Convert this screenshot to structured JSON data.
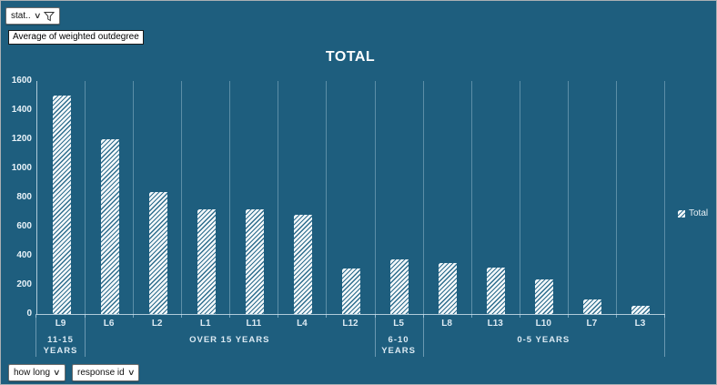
{
  "window_title": "pivot-chart",
  "filter_button": {
    "label": "stat.."
  },
  "value_field_label": "Average of weighted outdegree",
  "legend": {
    "label": "Total"
  },
  "axis_field_buttons": [
    {
      "label": "how long"
    },
    {
      "label": "response id"
    }
  ],
  "icons": {
    "caret": "∨"
  },
  "colors": {
    "background": "#1E5E7E",
    "bar_fill": "#F4F8FA",
    "bar_hatch_line": "#2E6D8D",
    "gridline": "rgba(185,215,230,0.40)",
    "text": "#EAF3F8"
  },
  "chart_data": {
    "type": "bar",
    "title": "TOTAL",
    "series_name": "Total",
    "categories": [
      "L9",
      "L6",
      "L2",
      "L1",
      "L11",
      "L4",
      "L12",
      "L5",
      "L8",
      "L13",
      "L10",
      "L7",
      "L3"
    ],
    "values": [
      1500,
      1200,
      840,
      720,
      720,
      680,
      310,
      375,
      350,
      320,
      240,
      100,
      55
    ],
    "groups": [
      {
        "label": "11-15 YEARS",
        "span": 1
      },
      {
        "label": "OVER 15 YEARS",
        "span": 6
      },
      {
        "label": "6-10 YEARS",
        "span": 1
      },
      {
        "label": "0-5 YEARS",
        "span": 5
      }
    ],
    "xlabel": "",
    "ylabel": "",
    "ylim": [
      0,
      1600
    ],
    "ytick_step": 200,
    "grid": "vertical-only",
    "legend_position": "right",
    "bar_pattern": "thin-diagonal-hatch"
  }
}
